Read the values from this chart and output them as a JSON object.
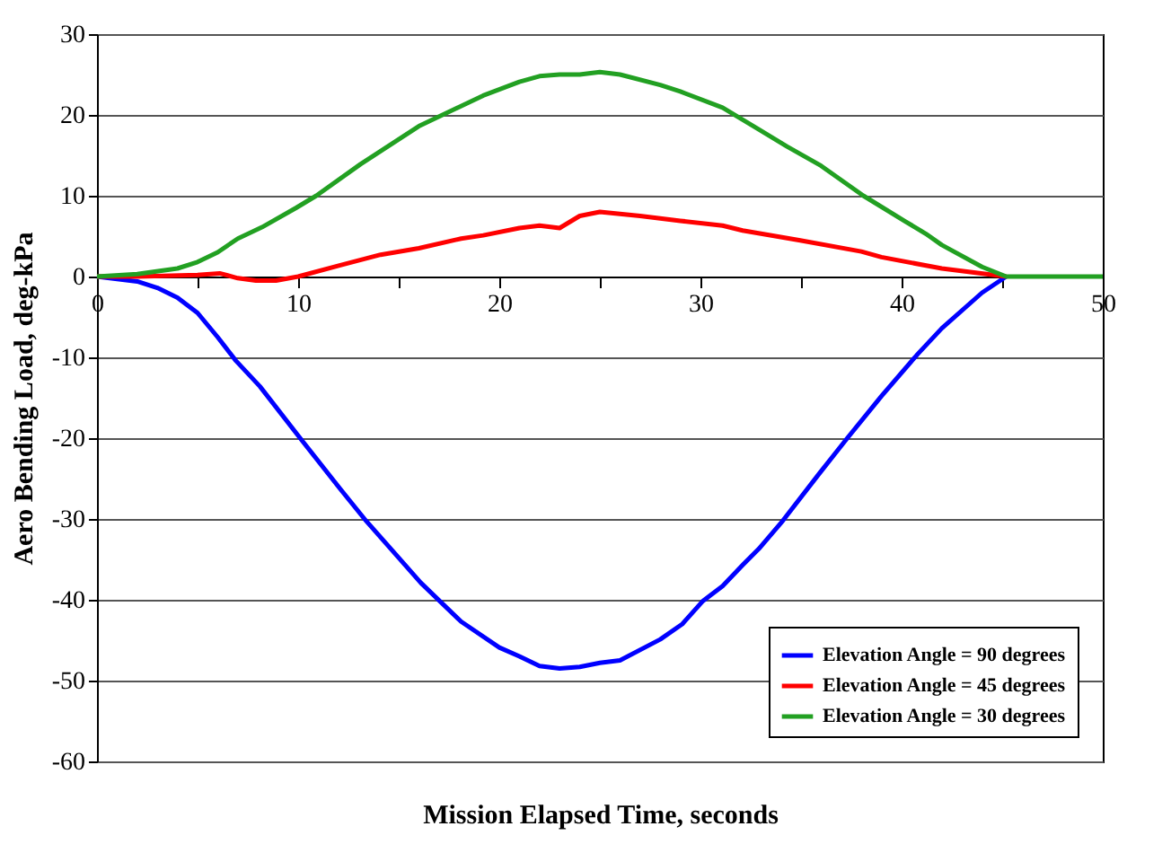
{
  "chart_data": {
    "type": "line",
    "xlabel": "Mission Elapsed Time, seconds",
    "ylabel": "Aero Bending Load, deg-kPa",
    "xlim": [
      0,
      50
    ],
    "ylim": [
      -60,
      30
    ],
    "xticks": [
      0,
      {
        "value": 5,
        "label": null
      },
      10,
      {
        "value": 15,
        "label": null
      },
      20,
      {
        "value": 25,
        "label": null
      },
      30,
      {
        "value": 35,
        "label": null
      },
      40,
      {
        "value": 45,
        "label": null
      },
      50
    ],
    "yticks": [
      -60,
      -50,
      -40,
      -30,
      -20,
      -10,
      0,
      10,
      20,
      30
    ],
    "grid": "y",
    "legend": "bottom right",
    "line_style": "solid",
    "marker": "none",
    "series": [
      {
        "name": "Elevation Angle = 90 degrees",
        "color": "#0000ff",
        "x": [
          0,
          2,
          3,
          4,
          5,
          6,
          6.9,
          8.1,
          10.1,
          12.1,
          13.4,
          16.1,
          18.1,
          20,
          21,
          22,
          23,
          24,
          25,
          26,
          28,
          29.1,
          30.1,
          31.1,
          32.1,
          32.9,
          34.1,
          35.9,
          37.3,
          39,
          40.8,
          42,
          44,
          45.2
        ],
        "values": [
          0,
          -0.6,
          -1.4,
          -2.6,
          -4.5,
          -7.5,
          -10.4,
          -13.6,
          -20,
          -26.3,
          -30.3,
          -37.9,
          -42.7,
          -45.9,
          -47,
          -48.2,
          -48.5,
          -48.3,
          -47.8,
          -47.5,
          -44.9,
          -43,
          -40.2,
          -38.3,
          -35.7,
          -33.7,
          -30.2,
          -24.4,
          -20,
          -14.8,
          -9.6,
          -6.4,
          -2,
          0
        ]
      },
      {
        "name": "Elevation Angle = 45 degrees",
        "color": "#ff0000",
        "x": [
          0,
          2,
          5,
          6.1,
          7,
          7.9,
          8.9,
          10,
          12.1,
          14.1,
          16,
          18.1,
          19.2,
          21,
          22,
          23,
          24,
          25,
          27,
          29,
          31.1,
          32.1,
          34.9,
          38,
          39,
          42,
          45.2
        ],
        "values": [
          0,
          0,
          0.2,
          0.4,
          -0.2,
          -0.5,
          -0.5,
          0,
          1.4,
          2.7,
          3.5,
          4.7,
          5.1,
          6,
          6.3,
          6,
          7.5,
          8,
          7.5,
          6.9,
          6.3,
          5.7,
          4.5,
          3.1,
          2.4,
          1,
          0
        ]
      },
      {
        "name": "Elevation Angle = 30 degrees",
        "color": "#22a022",
        "x": [
          0,
          2,
          4,
          5,
          6,
          7,
          8.2,
          9.9,
          10.9,
          13.1,
          16,
          19.2,
          21,
          22,
          23,
          24,
          25,
          26,
          28,
          29,
          31.1,
          32.9,
          34.3,
          36,
          38.1,
          40.2,
          41.2,
          42,
          44,
          45.2,
          50
        ],
        "values": [
          0,
          0.3,
          1,
          1.8,
          3,
          4.7,
          6.1,
          8.5,
          10,
          13.9,
          18.6,
          22.4,
          24.1,
          24.8,
          25,
          25,
          25.3,
          25,
          23.7,
          22.9,
          20.9,
          18.2,
          16.1,
          13.7,
          10,
          6.8,
          5.3,
          3.9,
          1.2,
          0,
          0
        ]
      }
    ]
  }
}
